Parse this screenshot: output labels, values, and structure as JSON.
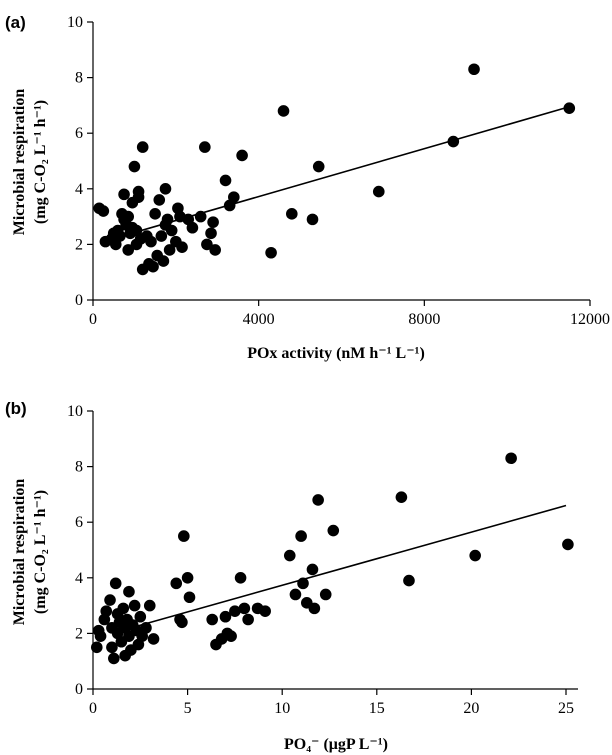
{
  "chart_data": [
    {
      "panel_label": "(a)",
      "type": "scatter",
      "xlabel": "POx activity (nM h⁻¹ L⁻¹)",
      "ylabel_line1": "Microbial respiration",
      "ylabel_line2": "(mg C-O₂ L⁻¹ h⁻¹)",
      "xlim": [
        0,
        12000
      ],
      "ylim": [
        0,
        10
      ],
      "x_ticks": [
        0,
        4000,
        8000,
        12000
      ],
      "y_ticks": [
        0,
        2,
        4,
        6,
        8,
        10
      ],
      "points": [
        [
          150,
          3.3
        ],
        [
          250,
          3.2
        ],
        [
          300,
          2.1
        ],
        [
          450,
          2.2
        ],
        [
          500,
          2.4
        ],
        [
          550,
          2.0
        ],
        [
          600,
          2.5
        ],
        [
          650,
          2.3
        ],
        [
          700,
          3.1
        ],
        [
          750,
          3.8
        ],
        [
          750,
          2.9
        ],
        [
          800,
          2.7
        ],
        [
          850,
          3.0
        ],
        [
          850,
          1.8
        ],
        [
          900,
          2.4
        ],
        [
          950,
          3.5
        ],
        [
          950,
          2.6
        ],
        [
          1000,
          4.8
        ],
        [
          1050,
          2.0
        ],
        [
          1050,
          2.5
        ],
        [
          1100,
          3.9
        ],
        [
          1100,
          3.7
        ],
        [
          1150,
          2.2
        ],
        [
          1200,
          5.5
        ],
        [
          1200,
          1.1
        ],
        [
          1300,
          2.3
        ],
        [
          1350,
          1.3
        ],
        [
          1400,
          2.1
        ],
        [
          1450,
          1.2
        ],
        [
          1500,
          3.1
        ],
        [
          1550,
          1.6
        ],
        [
          1600,
          3.6
        ],
        [
          1650,
          2.3
        ],
        [
          1700,
          1.4
        ],
        [
          1750,
          4.0
        ],
        [
          1750,
          2.7
        ],
        [
          1800,
          2.9
        ],
        [
          1850,
          1.8
        ],
        [
          1900,
          2.5
        ],
        [
          2000,
          2.1
        ],
        [
          2050,
          3.3
        ],
        [
          2100,
          3.0
        ],
        [
          2150,
          1.9
        ],
        [
          2300,
          2.9
        ],
        [
          2400,
          2.6
        ],
        [
          2600,
          3.0
        ],
        [
          2700,
          5.5
        ],
        [
          2750,
          2.0
        ],
        [
          2850,
          2.4
        ],
        [
          2900,
          2.8
        ],
        [
          2950,
          1.8
        ],
        [
          3200,
          4.3
        ],
        [
          3300,
          3.4
        ],
        [
          3400,
          3.7
        ],
        [
          3600,
          5.2
        ],
        [
          4300,
          1.7
        ],
        [
          4600,
          6.8
        ],
        [
          4800,
          3.1
        ],
        [
          5300,
          2.9
        ],
        [
          5450,
          4.8
        ],
        [
          6900,
          3.9
        ],
        [
          8700,
          5.7
        ],
        [
          9200,
          8.3
        ],
        [
          11500,
          6.9
        ]
      ],
      "trendline": [
        [
          700,
          2.3
        ],
        [
          11500,
          6.95
        ]
      ]
    },
    {
      "panel_label": "(b)",
      "type": "scatter",
      "xlabel": "PO₄⁻ (μgP L⁻¹)",
      "ylabel_line1": "Microbial respiration",
      "ylabel_line2": "(mg C-O₂ L⁻¹ h⁻¹)",
      "xlim": [
        0,
        25
      ],
      "ylim": [
        0,
        10
      ],
      "x_ticks": [
        0,
        5,
        10,
        15,
        20,
        25
      ],
      "y_ticks": [
        0,
        2,
        4,
        6,
        8,
        10
      ],
      "points": [
        [
          0.2,
          1.5
        ],
        [
          0.3,
          2.1
        ],
        [
          0.4,
          1.9
        ],
        [
          0.6,
          2.5
        ],
        [
          0.7,
          2.8
        ],
        [
          0.9,
          3.2
        ],
        [
          1.0,
          2.2
        ],
        [
          1.0,
          1.5
        ],
        [
          1.1,
          1.1
        ],
        [
          1.2,
          3.8
        ],
        [
          1.3,
          2.7
        ],
        [
          1.3,
          2.0
        ],
        [
          1.4,
          2.4
        ],
        [
          1.5,
          1.7
        ],
        [
          1.6,
          2.9
        ],
        [
          1.7,
          2.2
        ],
        [
          1.7,
          1.2
        ],
        [
          1.8,
          2.5
        ],
        [
          1.9,
          3.5
        ],
        [
          1.9,
          1.9
        ],
        [
          2.0,
          1.4
        ],
        [
          2.1,
          2.3
        ],
        [
          2.2,
          3.0
        ],
        [
          2.3,
          2.1
        ],
        [
          2.4,
          1.6
        ],
        [
          2.5,
          2.6
        ],
        [
          2.6,
          1.9
        ],
        [
          2.8,
          2.2
        ],
        [
          3.0,
          3.0
        ],
        [
          3.2,
          1.8
        ],
        [
          4.4,
          3.8
        ],
        [
          4.6,
          2.5
        ],
        [
          4.7,
          2.4
        ],
        [
          4.8,
          5.5
        ],
        [
          5.0,
          4.0
        ],
        [
          5.1,
          3.3
        ],
        [
          6.3,
          2.5
        ],
        [
          6.5,
          1.6
        ],
        [
          6.8,
          1.8
        ],
        [
          7.0,
          2.6
        ],
        [
          7.1,
          2.0
        ],
        [
          7.3,
          1.9
        ],
        [
          7.5,
          2.8
        ],
        [
          7.8,
          4.0
        ],
        [
          8.0,
          2.9
        ],
        [
          8.2,
          2.5
        ],
        [
          8.7,
          2.9
        ],
        [
          9.1,
          2.8
        ],
        [
          10.4,
          4.8
        ],
        [
          10.7,
          3.4
        ],
        [
          11.0,
          5.5
        ],
        [
          11.1,
          3.8
        ],
        [
          11.3,
          3.1
        ],
        [
          11.6,
          4.3
        ],
        [
          11.7,
          2.9
        ],
        [
          11.9,
          6.8
        ],
        [
          12.3,
          3.4
        ],
        [
          12.7,
          5.7
        ],
        [
          16.3,
          6.9
        ],
        [
          16.7,
          3.9
        ],
        [
          20.2,
          4.8
        ],
        [
          22.1,
          8.3
        ],
        [
          25.1,
          5.2
        ]
      ],
      "trendline": [
        [
          2.0,
          2.2
        ],
        [
          25.0,
          6.6
        ]
      ]
    }
  ]
}
